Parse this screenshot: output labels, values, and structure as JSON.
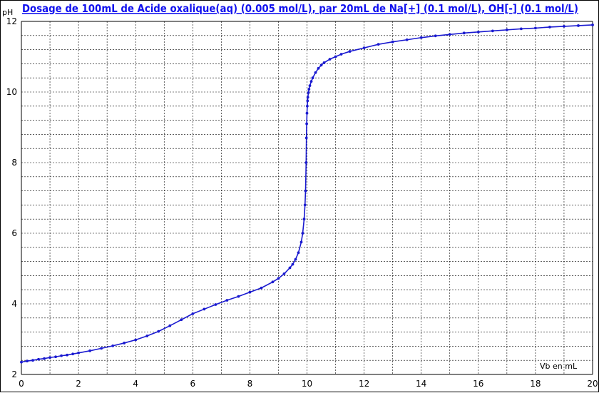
{
  "chart_data": {
    "type": "line",
    "title": "Dosage de 100mL de Acide oxalique(aq) (0.005 mol/L),  par 20mL  de Na[+] (0.1 mol/L), OH[-] (0.1 mol/L)",
    "xlabel": "Vb en mL",
    "ylabel": "pH",
    "xlim": [
      0,
      20
    ],
    "ylim": [
      2,
      12
    ],
    "xticks": [
      0,
      2,
      4,
      6,
      8,
      10,
      12,
      14,
      16,
      18,
      20
    ],
    "yticks": [
      2,
      4,
      6,
      8,
      10,
      12
    ],
    "grid": true,
    "colors": {
      "series": "#1a1ad0",
      "title": "#1010ee",
      "grid": "#000000"
    },
    "series": [
      {
        "x": [
          0,
          0.2,
          0.4,
          0.6,
          0.8,
          1.0,
          1.2,
          1.4,
          1.6,
          1.8,
          2.0,
          2.4,
          2.8,
          3.2,
          3.6,
          4.0,
          4.4,
          4.8,
          5.2,
          5.6,
          6.0,
          6.4,
          6.8,
          7.2,
          7.6,
          8.0,
          8.4,
          8.8,
          9.0,
          9.2,
          9.4,
          9.5,
          9.6,
          9.7,
          9.8,
          9.85,
          9.9,
          9.93,
          9.95,
          9.97,
          9.98,
          9.99,
          10.0,
          10.01,
          10.02,
          10.03,
          10.05,
          10.07,
          10.1,
          10.15,
          10.2,
          10.3,
          10.4,
          10.5,
          10.6,
          10.8,
          11.0,
          11.2,
          11.5,
          12.0,
          12.5,
          13.0,
          13.5,
          14.0,
          14.5,
          15.0,
          15.5,
          16.0,
          16.5,
          17.0,
          17.5,
          18.0,
          18.5,
          19.0,
          19.5,
          20.0
        ],
        "y": [
          2.35,
          2.38,
          2.4,
          2.43,
          2.45,
          2.48,
          2.5,
          2.53,
          2.55,
          2.58,
          2.61,
          2.67,
          2.74,
          2.81,
          2.89,
          2.98,
          3.09,
          3.22,
          3.38,
          3.55,
          3.72,
          3.85,
          3.98,
          4.1,
          4.21,
          4.33,
          4.45,
          4.62,
          4.72,
          4.85,
          5.02,
          5.12,
          5.26,
          5.45,
          5.75,
          6.0,
          6.4,
          6.8,
          7.2,
          8.0,
          8.7,
          9.1,
          9.4,
          9.6,
          9.75,
          9.85,
          9.98,
          10.08,
          10.18,
          10.3,
          10.4,
          10.55,
          10.67,
          10.76,
          10.83,
          10.93,
          11.0,
          11.07,
          11.15,
          11.25,
          11.35,
          11.42,
          11.48,
          11.54,
          11.59,
          11.63,
          11.67,
          11.7,
          11.73,
          11.76,
          11.79,
          11.81,
          11.84,
          11.86,
          11.88,
          11.9
        ]
      }
    ]
  }
}
